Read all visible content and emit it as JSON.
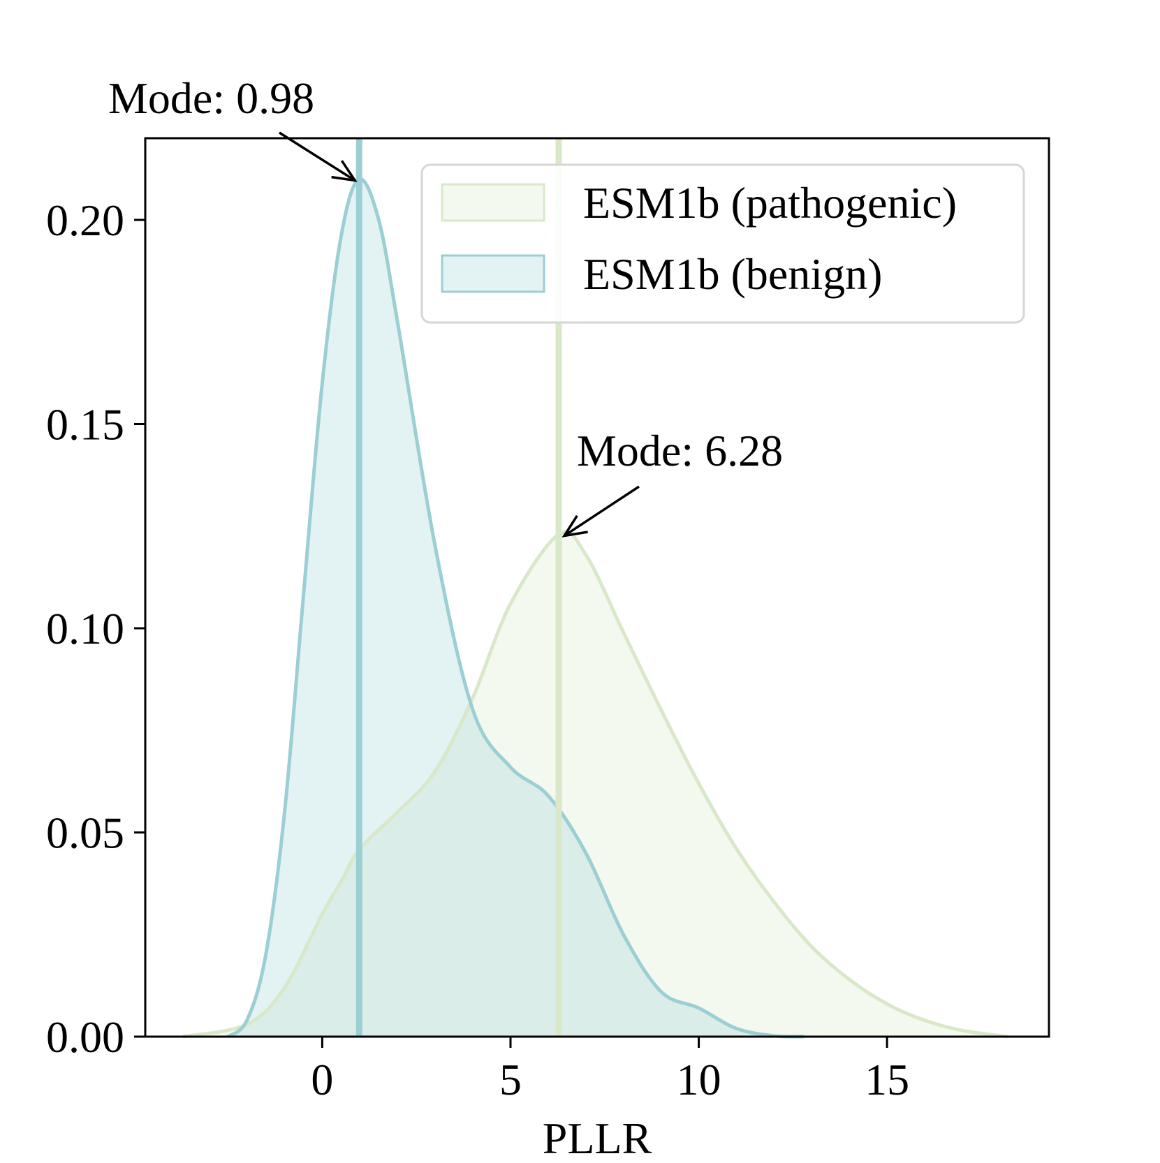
{
  "chart_data": {
    "type": "area",
    "title": "",
    "xlabel": "PLLR",
    "ylabel": "",
    "xlim": [
      -4.7,
      19.3
    ],
    "ylim": [
      0,
      0.22
    ],
    "x_ticks": [
      0,
      5,
      10,
      15
    ],
    "x_tick_labels": [
      "0",
      "5",
      "10",
      "15"
    ],
    "y_ticks": [
      0.0,
      0.05,
      0.1,
      0.15,
      0.2
    ],
    "y_tick_labels": [
      "0.00",
      "0.05",
      "0.10",
      "0.15",
      "0.20"
    ],
    "grid": false,
    "legend_position": "upper-right",
    "series": [
      {
        "name": "ESM1b (pathogenic)",
        "line_color": "#d9e8c8",
        "fill_color": "#f4f8ee",
        "mode": 6.28,
        "x": [
          -3.7,
          -2.0,
          -1.0,
          0.0,
          0.5,
          1.0,
          2.0,
          3.0,
          4.0,
          5.0,
          6.28,
          7.0,
          8.0,
          9.0,
          10.0,
          11.0,
          12.0,
          13.0,
          14.0,
          15.0,
          16.0,
          17.0,
          18.2
        ],
        "y": [
          0.0,
          0.003,
          0.012,
          0.03,
          0.038,
          0.046,
          0.055,
          0.065,
          0.083,
          0.106,
          0.123,
          0.118,
          0.099,
          0.08,
          0.062,
          0.046,
          0.033,
          0.022,
          0.014,
          0.008,
          0.004,
          0.0015,
          0.0
        ]
      },
      {
        "name": "ESM1b (benign)",
        "line_color": "#9ccfd3",
        "fill_color": "#e3f2f4",
        "mode": 0.98,
        "x": [
          -2.5,
          -2.0,
          -1.5,
          -1.0,
          -0.5,
          0.0,
          0.5,
          0.98,
          1.5,
          2.0,
          3.0,
          4.0,
          5.0,
          6.0,
          7.0,
          8.0,
          9.0,
          10.0,
          11.0,
          12.0,
          12.8
        ],
        "y": [
          0.0,
          0.004,
          0.02,
          0.055,
          0.108,
          0.16,
          0.196,
          0.21,
          0.2,
          0.175,
          0.12,
          0.08,
          0.066,
          0.059,
          0.045,
          0.025,
          0.011,
          0.007,
          0.002,
          0.0002,
          0.0
        ]
      }
    ],
    "annotations": [
      {
        "text": "Mode: 0.98",
        "target_x": 0.98,
        "target_y": 0.21
      },
      {
        "text": "Mode: 6.28",
        "target_x": 6.28,
        "target_y": 0.123
      }
    ]
  }
}
